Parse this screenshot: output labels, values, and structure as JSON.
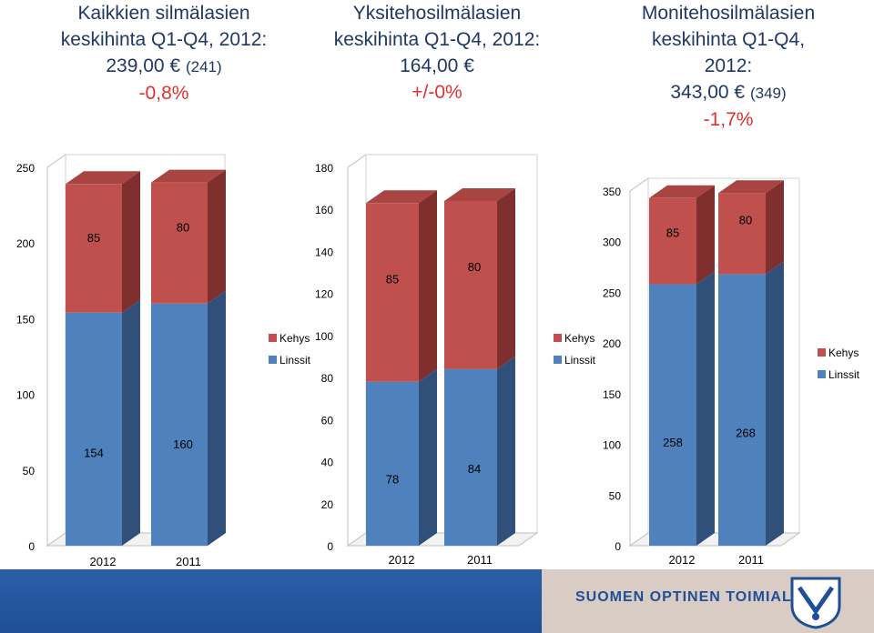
{
  "headings": [
    {
      "line1": "Kaikkien silmälasien",
      "line2": "keskihinta Q1-Q4, 2012:",
      "price": "239,00 €",
      "prev": "(241)",
      "change": "-0,8%"
    },
    {
      "line1": "Yksitehosilmälasien",
      "line2": "keskihinta Q1-Q4, 2012:",
      "price": "164,00 €",
      "prev": "",
      "change": "+/-0%"
    },
    {
      "line1": "Monitehosilmälasien",
      "line2": "keskihinta Q1-Q4,",
      "line3": "2012:",
      "price": "343,00 €",
      "prev": "(349)",
      "change": "-1,7%"
    }
  ],
  "colors": {
    "linssit": "#4f81bd",
    "kehys": "#c0504d",
    "linssit_side": "#30507a",
    "kehys_side": "#7f2f2e",
    "heading": "#1f3864",
    "change": "#e03030"
  },
  "chart_data": [
    {
      "type": "bar",
      "stacked": true,
      "categories": [
        "2012",
        "2011"
      ],
      "series": [
        {
          "name": "Linssit",
          "values": [
            154,
            160
          ]
        },
        {
          "name": "Kehys",
          "values": [
            85,
            80
          ]
        }
      ],
      "ylim": [
        0,
        250
      ],
      "yticks": [
        0,
        50,
        100,
        150,
        200,
        250
      ],
      "legend": "right"
    },
    {
      "type": "bar",
      "stacked": true,
      "categories": [
        "2012",
        "2011"
      ],
      "series": [
        {
          "name": "Linssit",
          "values": [
            78,
            84
          ]
        },
        {
          "name": "Kehys",
          "values": [
            85,
            80
          ]
        }
      ],
      "ylim": [
        0,
        180
      ],
      "yticks": [
        0,
        20,
        40,
        60,
        80,
        100,
        120,
        140,
        160,
        180
      ],
      "legend": "right"
    },
    {
      "type": "bar",
      "stacked": true,
      "categories": [
        "2012",
        "2011"
      ],
      "series": [
        {
          "name": "Linssit",
          "values": [
            258,
            268
          ]
        },
        {
          "name": "Kehys",
          "values": [
            85,
            80
          ]
        }
      ],
      "ylim": [
        0,
        350
      ],
      "yticks": [
        0,
        50,
        100,
        150,
        200,
        250,
        300,
        350
      ],
      "legend": "right"
    }
  ],
  "footer": {
    "org": "SUOMEN OPTINEN TOIMIALA"
  }
}
